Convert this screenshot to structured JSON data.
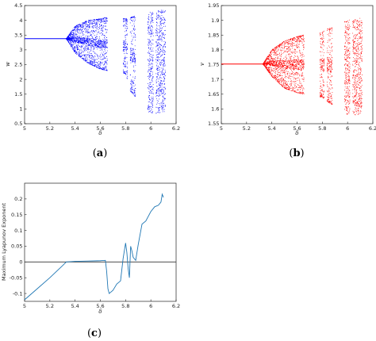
{
  "chart_data": [
    {
      "type": "scatter",
      "panel": "a",
      "caption": "(a)",
      "xlabel": "δ",
      "ylabel": "w",
      "xlim": [
        5,
        6.2
      ],
      "ylim": [
        0.5,
        4.5
      ],
      "xticks": [
        "5",
        "5.2",
        "5.4",
        "5.6",
        "5.8",
        "6",
        "6.2"
      ],
      "yticks": [
        "0.5",
        "1",
        "1.5",
        "2",
        "2.5",
        "3",
        "3.5",
        "4",
        "4.5"
      ],
      "color": "#0000ff",
      "series": [
        {
          "fixed_point": {
            "x": [
              5.0,
              5.33
            ],
            "y": 3.38
          },
          "bifurcation_start": 5.33,
          "envelope": [
            {
              "x": 5.33,
              "ymin": 3.38,
              "ymax": 3.38
            },
            {
              "x": 5.4,
              "ymin": 2.9,
              "ymax": 3.8
            },
            {
              "x": 5.5,
              "ymin": 2.55,
              "ymax": 4.0
            },
            {
              "x": 5.6,
              "ymin": 2.35,
              "ymax": 4.05
            },
            {
              "x": 5.65,
              "ymin": 2.3,
              "ymax": 4.1
            },
            {
              "x": 5.8,
              "ymin": 2.2,
              "ymax": 4.05
            },
            {
              "x": 5.84,
              "ymin": 1.6,
              "ymax": 4.1
            },
            {
              "x": 6.0,
              "ymin": 0.8,
              "ymax": 4.3
            },
            {
              "x": 6.1,
              "ymin": 0.9,
              "ymax": 4.35
            }
          ]
        }
      ]
    },
    {
      "type": "scatter",
      "panel": "b",
      "caption": "(b)",
      "xlabel": "δ",
      "ylabel": "v",
      "xlim": [
        5,
        6.2
      ],
      "ylim": [
        1.55,
        1.95
      ],
      "xticks": [
        "5",
        "5.2",
        "5.4",
        "5.6",
        "5.8",
        "6",
        "6.2"
      ],
      "yticks": [
        "1.55",
        "1.6",
        "1.65",
        "1.7",
        "1.75",
        "1.8",
        "1.85",
        "1.9",
        "1.95"
      ],
      "color": "#ff0000",
      "series": [
        {
          "fixed_point": {
            "x": [
              5.0,
              5.33
            ],
            "y": 1.752
          },
          "bifurcation_start": 5.33,
          "envelope": [
            {
              "x": 5.33,
              "ymin": 1.752,
              "ymax": 1.752
            },
            {
              "x": 5.4,
              "ymin": 1.71,
              "ymax": 1.8
            },
            {
              "x": 5.5,
              "ymin": 1.67,
              "ymax": 1.83
            },
            {
              "x": 5.6,
              "ymin": 1.655,
              "ymax": 1.845
            },
            {
              "x": 5.65,
              "ymin": 1.65,
              "ymax": 1.85
            },
            {
              "x": 5.8,
              "ymin": 1.64,
              "ymax": 1.86
            },
            {
              "x": 5.84,
              "ymin": 1.625,
              "ymax": 1.87
            },
            {
              "x": 6.0,
              "ymin": 1.58,
              "ymax": 1.9
            },
            {
              "x": 6.1,
              "ymin": 1.58,
              "ymax": 1.91
            }
          ]
        }
      ]
    },
    {
      "type": "line",
      "panel": "c",
      "caption": "(c)",
      "xlabel": "δ",
      "ylabel": "Maximum Lyapunov Exponent",
      "xlim": [
        5,
        6.2
      ],
      "ylim": [
        -0.125,
        0.25
      ],
      "xticks": [
        "5",
        "5.2",
        "5.4",
        "5.6",
        "5.8",
        "6",
        "6.2"
      ],
      "yticks": [
        "-0.1",
        "-0.05",
        "0",
        "0.05",
        "0.1",
        "0.15",
        "0.2"
      ],
      "color": "#1f77b4",
      "zero_line": true,
      "series": [
        {
          "x": [
            5.0,
            5.1,
            5.2,
            5.3,
            5.33,
            5.4,
            5.5,
            5.6,
            5.64,
            5.65,
            5.66,
            5.67,
            5.7,
            5.73,
            5.76,
            5.78,
            5.8,
            5.81,
            5.82,
            5.83,
            5.84,
            5.85,
            5.86,
            5.88,
            5.9,
            5.93,
            5.96,
            6.0,
            6.03,
            6.06,
            6.08,
            6.09,
            6.1
          ],
          "y": [
            -0.12,
            -0.085,
            -0.05,
            -0.012,
            0.0,
            0.002,
            0.003,
            0.004,
            0.005,
            -0.03,
            -0.085,
            -0.1,
            -0.09,
            -0.07,
            -0.06,
            0.01,
            0.06,
            0.03,
            -0.02,
            -0.05,
            0.05,
            0.035,
            0.015,
            0.005,
            0.055,
            0.12,
            0.13,
            0.16,
            0.175,
            0.18,
            0.19,
            0.215,
            0.205
          ]
        }
      ]
    }
  ]
}
